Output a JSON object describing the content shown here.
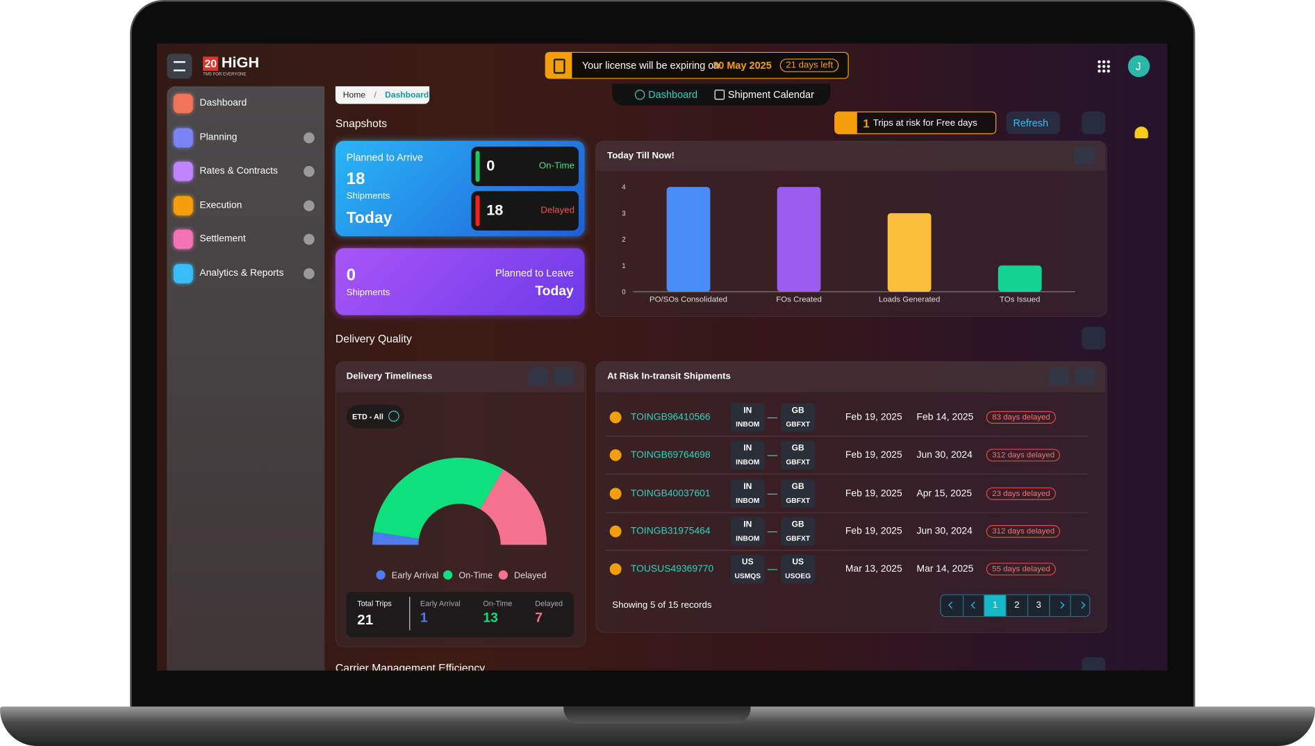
{
  "header": {
    "logo_number": "20",
    "logo_text": "HiGH",
    "tagline": "TMS FOR EVERYONE",
    "license_text": "Your license will be expiring on",
    "license_date": "30 May 2025",
    "days_left": "21 days left",
    "avatar": "J"
  },
  "sidebar": {
    "items": [
      "Dashboard",
      "Planning",
      "Rates & Contracts",
      "Execution",
      "Settlement",
      "Analytics & Reports"
    ]
  },
  "breadcrumb": [
    "Home",
    "Dashboard"
  ],
  "tabs": [
    "Dashboard",
    "Shipment Calendar"
  ],
  "snapshots": {
    "title": "Snapshots",
    "risk_count": "1",
    "risk_text": "Trips at risk for Free days",
    "refresh": "Refresh",
    "arrive": {
      "label": "Planned to Arrive",
      "count": "18",
      "unit": "Shipments",
      "day": "Today",
      "ontime": "0",
      "ontime_label": "On-Time",
      "delayed": "18",
      "delayed_label": "Delayed"
    },
    "leave": {
      "count": "0",
      "unit": "Shipments",
      "label": "Planned to Leave",
      "day": "Today"
    }
  },
  "delivery_quality": {
    "title": "Delivery Quality",
    "filter": "ETD - All",
    "total_label": "Total Trips",
    "total": "21"
  },
  "at_risk": {
    "title": "At Risk In-transit Shipments",
    "rows": [
      [
        "TOINGB96410566",
        "IN",
        "INBOM",
        "GB",
        "GBFXT",
        "Feb 19, 2025",
        "Feb 14, 2025",
        "83 days delayed"
      ],
      [
        "TOINGB69764698",
        "IN",
        "INBOM",
        "GB",
        "GBFXT",
        "Feb 19, 2025",
        "Jun 30, 2024",
        "312 days delayed"
      ],
      [
        "TOINGB40037601",
        "IN",
        "INBOM",
        "GB",
        "GBFXT",
        "Feb 19, 2025",
        "Apr 15, 2025",
        "23 days delayed"
      ],
      [
        "TOINGB31975464",
        "IN",
        "INBOM",
        "GB",
        "GBFXT",
        "Feb 19, 2025",
        "Jun 30, 2024",
        "312 days delayed"
      ],
      [
        "TOUSUS49369770",
        "US",
        "USMQS",
        "US",
        "USOEG",
        "Mar 13, 2025",
        "Mar 14, 2025",
        "55 days delayed"
      ]
    ],
    "showing": "Showing 5 of 15 records",
    "pages": [
      "1",
      "2",
      "3"
    ]
  },
  "carrier": {
    "title": "Carrier Management Efficiency"
  },
  "chart_data": [
    {
      "type": "bar",
      "title": "Today Till Now!",
      "categories": [
        "PO/SOs Consolidated",
        "FOs Created",
        "Loads Generated",
        "TOs Issued"
      ],
      "values": [
        4,
        4,
        3,
        1
      ],
      "colors": [
        "#4a8cf7",
        "#9b5cf0",
        "#fbbf3c",
        "#14d392"
      ],
      "ylim": [
        0,
        4
      ],
      "yticks": [
        0,
        1,
        2,
        3,
        4
      ],
      "grid": false
    },
    {
      "type": "gauge",
      "title": "Delivery Timeliness",
      "categories": [
        "Early Arrival",
        "On-Time",
        "Delayed"
      ],
      "values": [
        1,
        13,
        7
      ],
      "colors": [
        "#4b7bec",
        "#0de07c",
        "#f4728e"
      ]
    }
  ]
}
